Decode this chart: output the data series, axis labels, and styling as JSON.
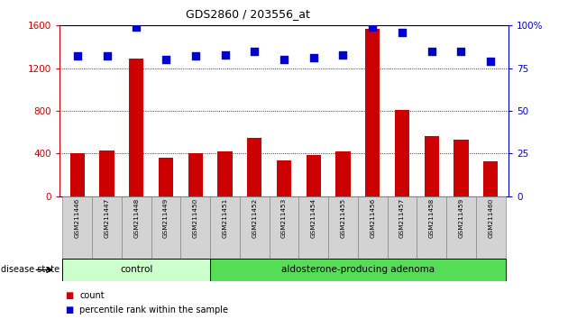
{
  "title": "GDS2860 / 203556_at",
  "categories": [
    "GSM211446",
    "GSM211447",
    "GSM211448",
    "GSM211449",
    "GSM211450",
    "GSM211451",
    "GSM211452",
    "GSM211453",
    "GSM211454",
    "GSM211455",
    "GSM211456",
    "GSM211457",
    "GSM211458",
    "GSM211459",
    "GSM211460"
  ],
  "bar_values": [
    400,
    430,
    1290,
    360,
    400,
    420,
    550,
    335,
    390,
    420,
    1570,
    810,
    560,
    530,
    330
  ],
  "percentile_values": [
    82,
    82,
    99,
    80,
    82,
    83,
    85,
    80,
    81,
    83,
    99,
    96,
    85,
    85,
    79
  ],
  "bar_color": "#cc0000",
  "dot_color": "#0000cc",
  "ylim_left": [
    0,
    1600
  ],
  "ylim_right": [
    0,
    100
  ],
  "yticks_left": [
    0,
    400,
    800,
    1200,
    1600
  ],
  "yticks_right": [
    0,
    25,
    50,
    75,
    100
  ],
  "yticklabels_right": [
    "0",
    "25",
    "50",
    "75",
    "100%"
  ],
  "grid_values": [
    400,
    800,
    1200
  ],
  "control_label": "control",
  "adenoma_label": "aldosterone-producing adenoma",
  "disease_state_label": "disease state",
  "legend_count": "count",
  "legend_percentile": "percentile rank within the sample",
  "control_color": "#ccffcc",
  "adenoma_color": "#55dd55",
  "left_axis_color": "#cc0000",
  "right_axis_color": "#0000cc",
  "bar_width": 0.5,
  "dot_size": 35,
  "bg_color": "#ffffff"
}
